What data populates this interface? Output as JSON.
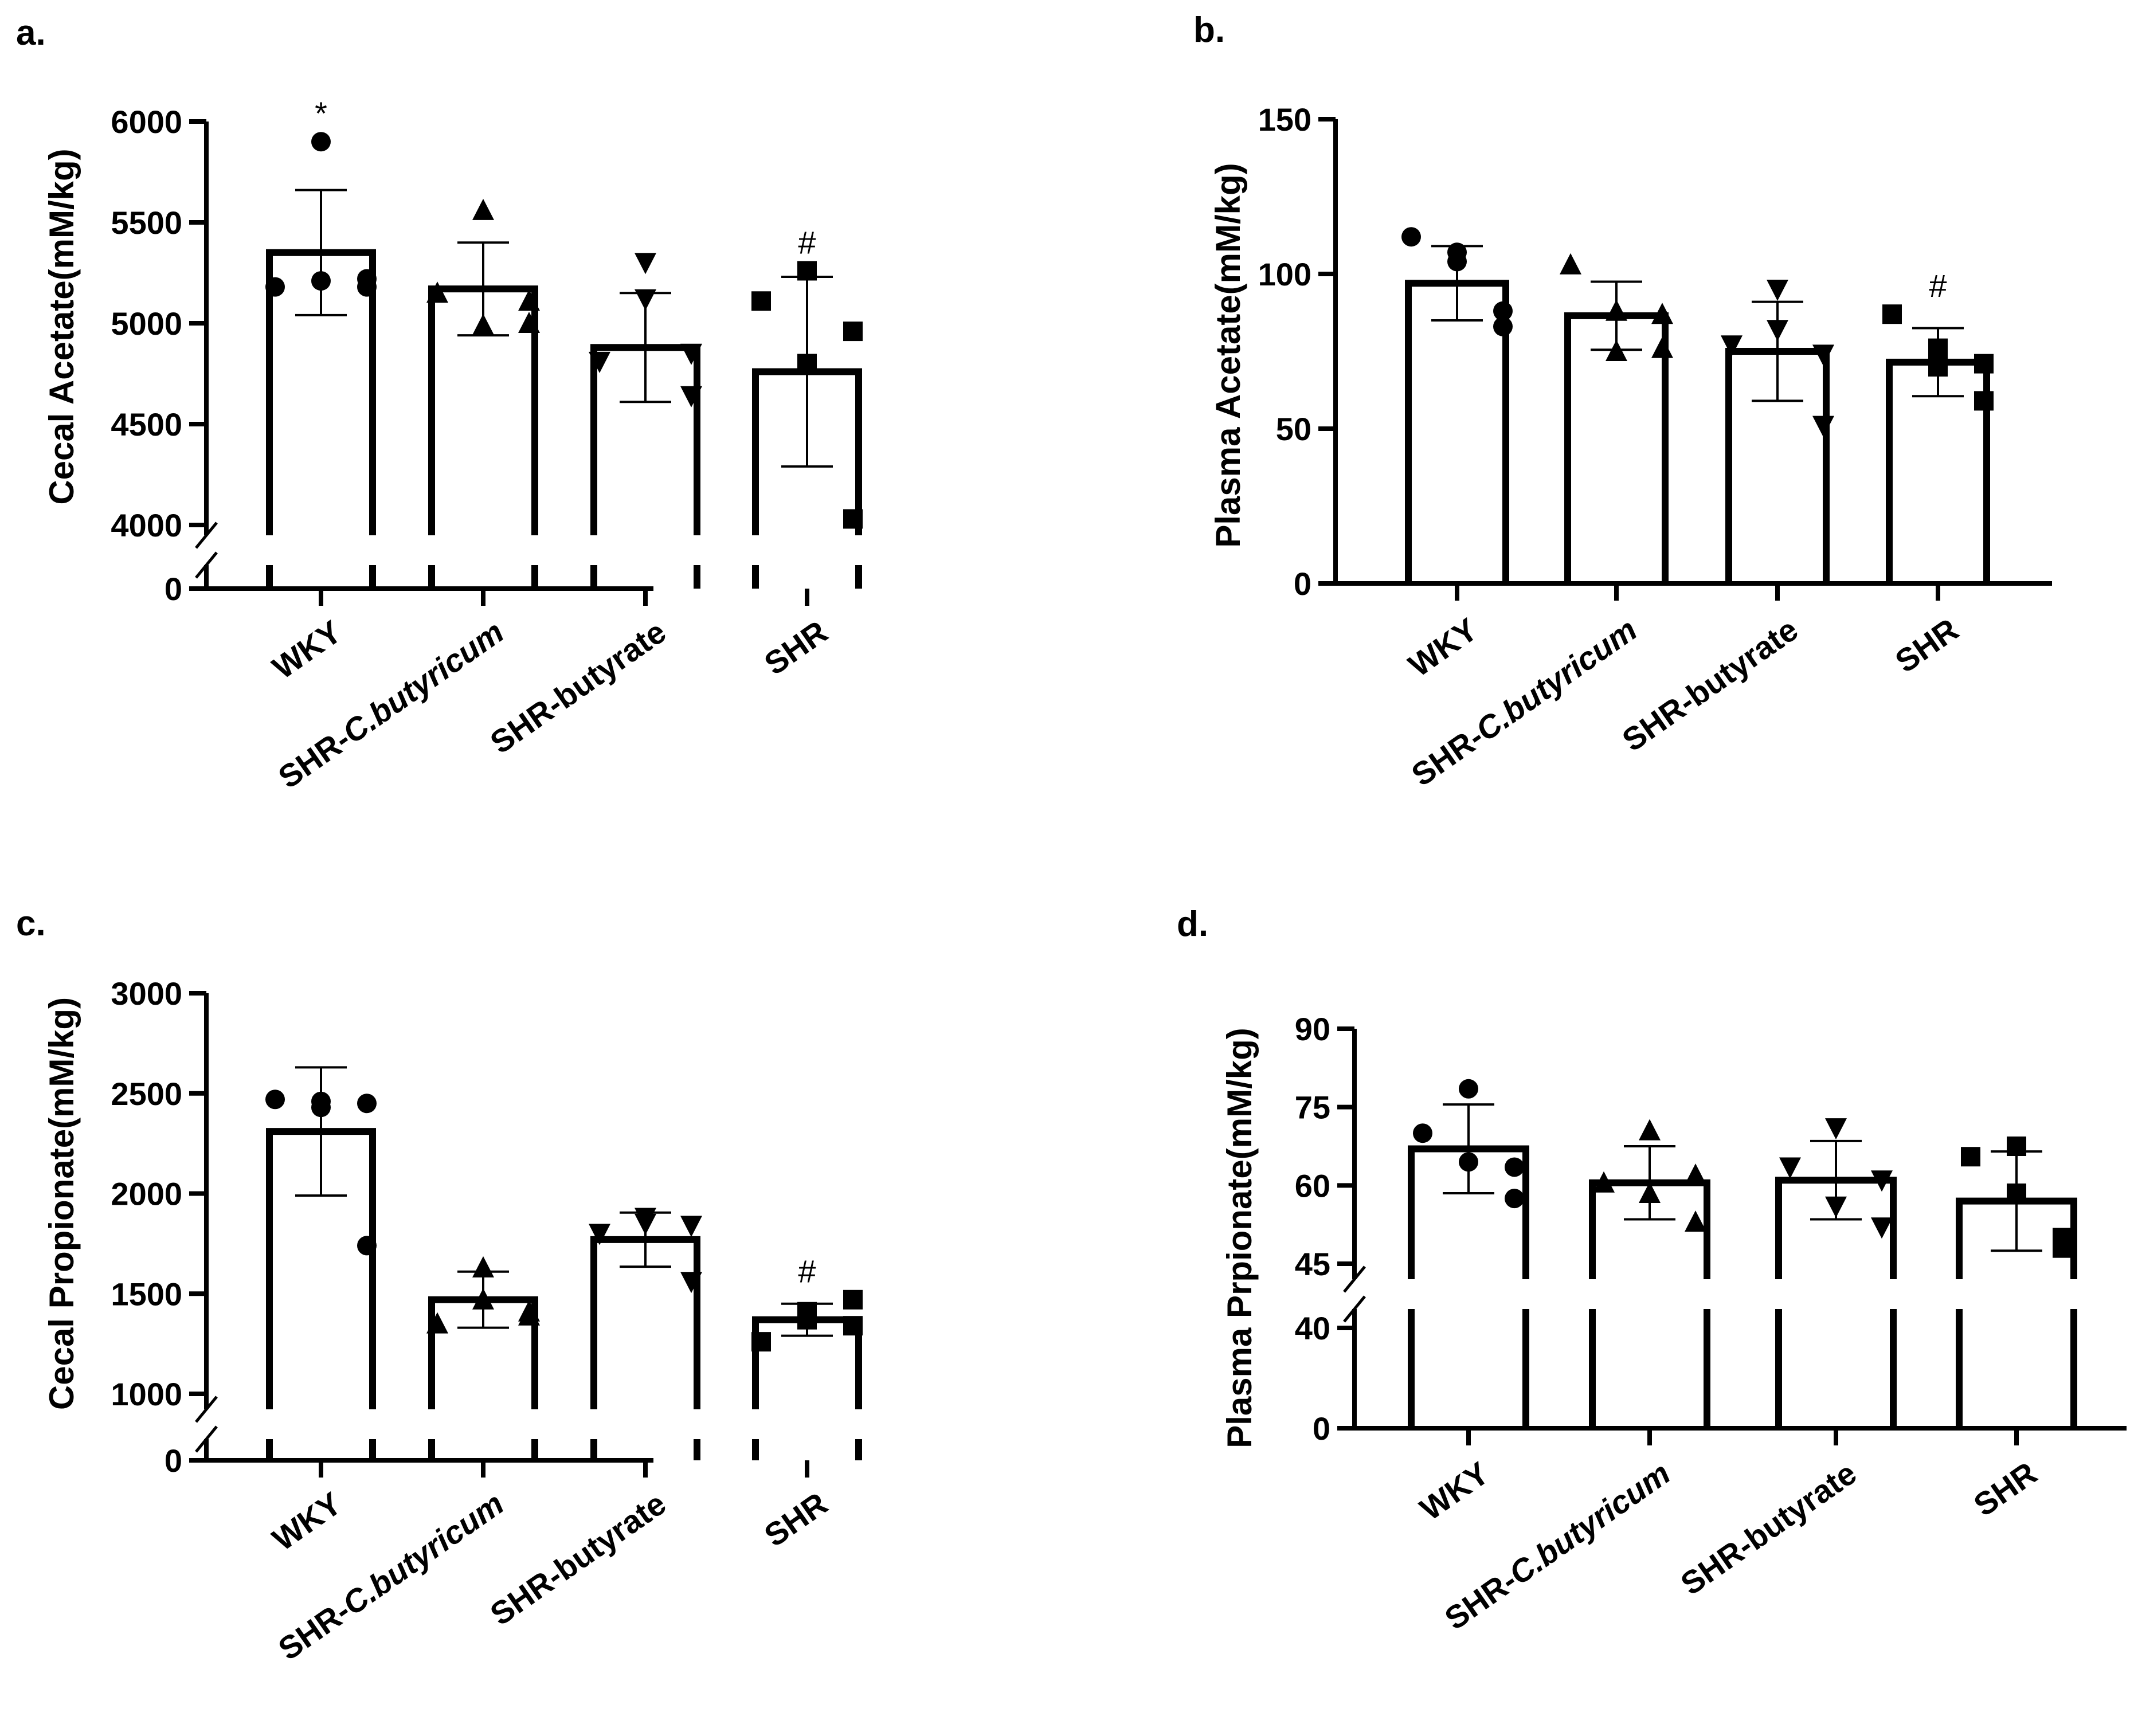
{
  "chart_data": [
    {
      "panel": "a.",
      "type": "bar",
      "ylabel": "Cecal Acetate(mM/kg)",
      "categories": [
        "WKY",
        "SHR-C.butyricum",
        "SHR-butyrate",
        "SHR"
      ],
      "category_parts": [
        [
          "WKY",
          ""
        ],
        [
          "SHR-",
          "C.butyricum"
        ],
        [
          "SHR-butyrate",
          ""
        ],
        [
          "SHR",
          ""
        ]
      ],
      "marker_shapes": [
        "circle",
        "triangle-up",
        "triangle-down",
        "square"
      ],
      "means": [
        5350,
        5170,
        4880,
        4760
      ],
      "errors": [
        310,
        230,
        270,
        470
      ],
      "points": [
        [
          5900,
          5180,
          5210,
          5220,
          5180
        ],
        [
          5560,
          5150,
          4990,
          5110,
          5000
        ],
        [
          5300,
          4810,
          5120,
          4640,
          4850
        ],
        [
          5260,
          5110,
          4800,
          4960,
          4030
        ]
      ],
      "significance": [
        "*",
        "",
        "",
        "#"
      ],
      "ylim": [
        0,
        6000
      ],
      "axis_break": {
        "lower": [
          0,
          0
        ],
        "upper": [
          4000,
          6000
        ]
      },
      "lower_ticks": [
        0
      ],
      "upper_ticks": [
        4000,
        4500,
        5000,
        5500,
        6000
      ]
    },
    {
      "panel": "b.",
      "type": "bar",
      "ylabel": "Plasma Acetate(mM/kg)",
      "categories": [
        "WKY",
        "SHR-C.butyricum",
        "SHR-butyrate",
        "SHR"
      ],
      "category_parts": [
        [
          "WKY",
          ""
        ],
        [
          "SHR-",
          "C.butyricum"
        ],
        [
          "SHR-butyrate",
          ""
        ],
        [
          "SHR",
          ""
        ]
      ],
      "marker_shapes": [
        "circle",
        "triangle-up",
        "triangle-down",
        "square"
      ],
      "means": [
        97,
        86.5,
        75,
        71.5
      ],
      "errors": [
        12,
        11,
        16,
        11
      ],
      "points": [
        [
          104,
          112,
          107,
          83,
          88
        ],
        [
          88,
          103,
          75,
          87,
          76
        ],
        [
          95,
          77,
          82,
          51,
          74
        ],
        [
          76,
          87,
          70,
          59,
          71
        ]
      ],
      "significance": [
        "",
        "",
        "",
        "#"
      ],
      "ylim": [
        0,
        150
      ],
      "axis_break": null,
      "ticks": [
        0,
        50,
        100,
        150
      ]
    },
    {
      "panel": "c.",
      "type": "bar",
      "ylabel": "Cecal Propionate(mM/kg)",
      "categories": [
        "WKY",
        "SHR-C.butyricum",
        "SHR-butyrate",
        "SHR"
      ],
      "category_parts": [
        [
          "WKY",
          ""
        ],
        [
          "SHR-",
          "C.butyricum"
        ],
        [
          "SHR-butyrate",
          ""
        ],
        [
          "SHR",
          ""
        ]
      ],
      "marker_shapes": [
        "circle",
        "triangle-up",
        "triangle-down",
        "square"
      ],
      "means": [
        2310,
        1470,
        1770,
        1370
      ],
      "errors": [
        320,
        140,
        135,
        80
      ],
      "points": [
        [
          2430,
          2470,
          2460,
          2450,
          1740
        ],
        [
          1630,
          1350,
          1470,
          1410,
          1390
        ],
        [
          1880,
          1800,
          1850,
          1840,
          1560
        ],
        [
          1410,
          1260,
          1370,
          1470,
          1340
        ]
      ],
      "significance": [
        "",
        "",
        "",
        "#"
      ],
      "ylim": [
        0,
        3000
      ],
      "axis_break": {
        "lower": [
          0,
          0
        ],
        "upper": [
          1000,
          3000
        ]
      },
      "lower_ticks": [
        0
      ],
      "upper_ticks": [
        1000,
        1500,
        2000,
        2500,
        3000
      ]
    },
    {
      "panel": "d.",
      "type": "bar",
      "ylabel": "Plasma Prpionate(mM/kg)",
      "categories": [
        "WKY",
        "SHR-C.butyricum",
        "SHR-butyrate",
        "SHR"
      ],
      "category_parts": [
        [
          "WKY",
          ""
        ],
        [
          "SHR-",
          "C.butyricum"
        ],
        [
          "SHR-butyrate",
          ""
        ],
        [
          "SHR",
          ""
        ]
      ],
      "marker_shapes": [
        "circle",
        "triangle-up",
        "triangle-down",
        "square"
      ],
      "means": [
        67,
        60.5,
        61,
        57
      ],
      "errors": [
        8.5,
        7,
        7.5,
        9.5
      ],
      "points": [
        [
          78.5,
          70,
          64.5,
          63.5,
          57.5
        ],
        [
          70.5,
          60.5,
          58.5,
          62,
          53
        ],
        [
          71,
          63.5,
          56,
          61,
          52
        ],
        [
          67.5,
          65.5,
          58.5,
          48,
          50
        ]
      ],
      "significance": [
        "",
        "",
        "",
        ""
      ],
      "ylim": [
        0,
        90
      ],
      "axis_break": {
        "lower": [
          0,
          40
        ],
        "upper": [
          45,
          90
        ]
      },
      "lower_ticks": [
        0,
        40
      ],
      "upper_ticks": [
        45,
        60,
        75,
        90
      ]
    }
  ]
}
